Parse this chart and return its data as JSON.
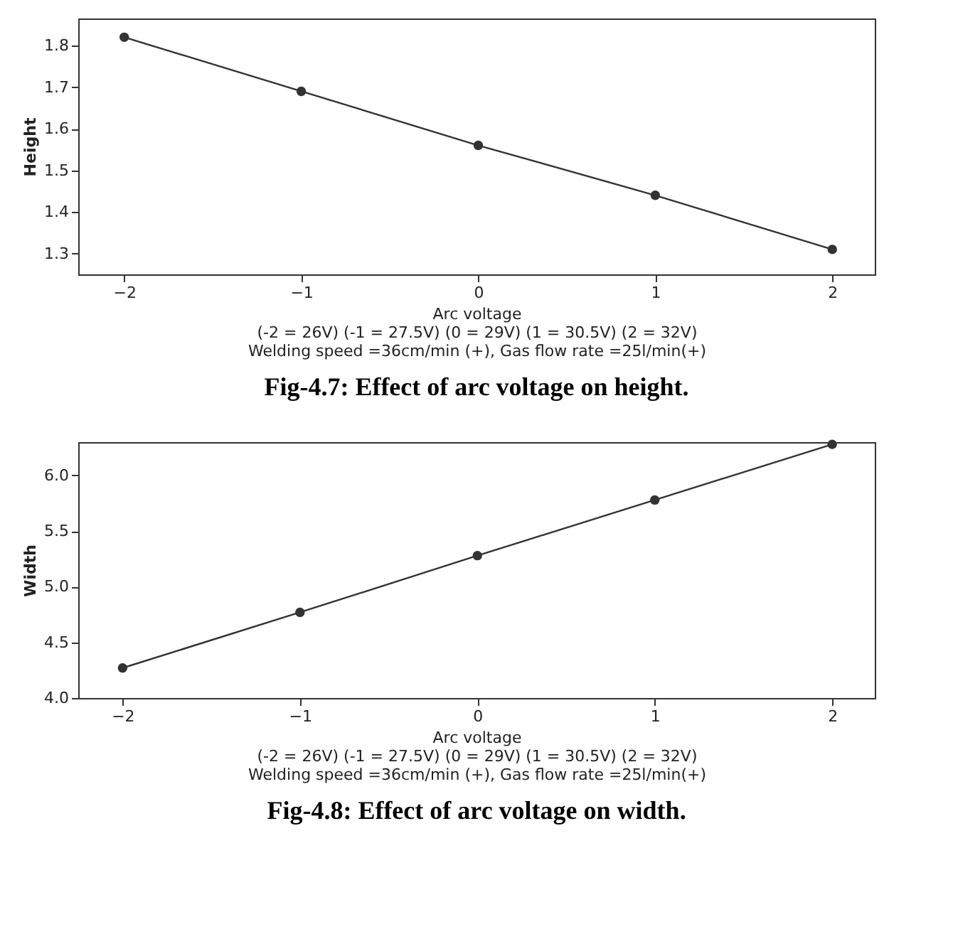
{
  "chart_data": [
    {
      "type": "line",
      "title": "Fig-4.7: Effect of arc voltage on height.",
      "xlabel": "Arc voltage",
      "ylabel": "Height",
      "annotations": [
        "(-2 = 26V) (-1 = 27.5V) (0 = 29V) (1 = 30.5V) (2 = 32V)",
        "Welding speed =36cm/min (+), Gas flow rate =25l/min(+)"
      ],
      "x": [
        -2,
        -1,
        0,
        1,
        2
      ],
      "series": [
        {
          "color": "#333333",
          "values": [
            1.82,
            1.69,
            1.56,
            1.44,
            1.31
          ]
        }
      ],
      "xlim": [
        -2.26,
        2.24
      ],
      "xticks": [
        -2,
        -1,
        0,
        1,
        2
      ],
      "ylim": [
        1.25,
        1.865
      ],
      "yticks": [
        1.3,
        1.4,
        1.5,
        1.6,
        1.7,
        1.8
      ],
      "grid": false,
      "marker": "circle",
      "line_style": "solid"
    },
    {
      "type": "line",
      "title": "Fig-4.8: Effect of arc voltage on width.",
      "xlabel": "Arc voltage",
      "ylabel": "Width",
      "annotations": [
        "(-2 = 26V) (-1 = 27.5V) (0 = 29V) (1 = 30.5V) (2 = 32V)",
        "Welding speed =36cm/min (+), Gas flow rate =25l/min(+)"
      ],
      "x": [
        -2,
        -1,
        0,
        1,
        2
      ],
      "series": [
        {
          "color": "#333333",
          "values": [
            4.27,
            4.77,
            5.28,
            5.78,
            6.28
          ]
        }
      ],
      "xlim": [
        -2.25,
        2.24
      ],
      "xticks": [
        -2,
        -1,
        0,
        1,
        2
      ],
      "ylim": [
        4.0,
        6.3
      ],
      "yticks": [
        {
          "value": 4.0,
          "label": "4.0"
        },
        4.5,
        {
          "value": 5.0,
          "label": "5.0"
        },
        5.5,
        {
          "value": 6.0,
          "label": "6.0"
        }
      ],
      "grid": false,
      "marker": "circle",
      "line_style": "solid"
    }
  ]
}
